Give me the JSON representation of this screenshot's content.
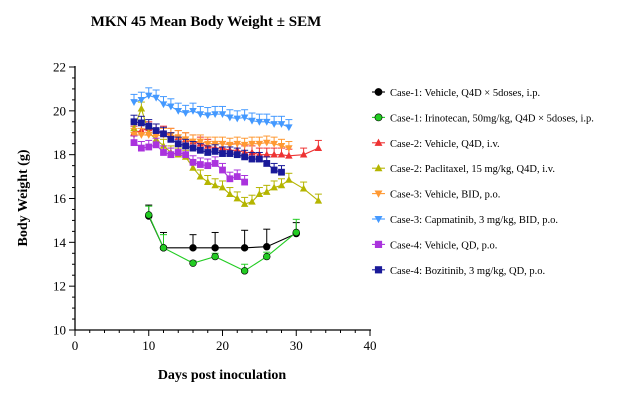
{
  "chart_data": {
    "type": "scatter",
    "title": "MKN 45 Mean Body Weight ± SEM",
    "xlabel": "Days post inoculation",
    "ylabel": "Body Weight (g)",
    "xlim": [
      0,
      40
    ],
    "ylim": [
      10,
      22
    ],
    "xticks": [
      0,
      10,
      20,
      30,
      40
    ],
    "yticks": [
      10,
      12,
      14,
      16,
      18,
      20,
      22
    ],
    "legend_position": "right",
    "series": [
      {
        "name": "Case-1: Vehicle, Q4D × 5doses, i.p.",
        "color": "#000000",
        "marker": "circle",
        "line": true,
        "x": [
          10,
          12,
          16,
          19,
          23,
          26,
          30
        ],
        "y": [
          15.2,
          13.75,
          13.75,
          13.75,
          13.75,
          13.8,
          14.4
        ],
        "err": [
          0.5,
          0.7,
          0.6,
          0.7,
          0.8,
          0.8,
          0.5
        ]
      },
      {
        "name": "Case-1: Irinotecan, 50mg/kg, Q4D × 5doses, i.p.",
        "color": "#22cc22",
        "marker": "circle",
        "line": true,
        "x": [
          10,
          12,
          16,
          19,
          23,
          26,
          30
        ],
        "y": [
          15.25,
          13.75,
          13.05,
          13.35,
          12.7,
          13.35,
          14.45
        ],
        "err": [
          0.4,
          0.6,
          0.1,
          0.15,
          0.3,
          0.2,
          0.6
        ]
      },
      {
        "name": "Case-2: Vehicle, Q4D, i.v.",
        "color": "#ee3333",
        "marker": "triangle-up",
        "line": true,
        "x": [
          8,
          9,
          10,
          11,
          12,
          13,
          14,
          15,
          16,
          17,
          18,
          19,
          20,
          21,
          22,
          23,
          24,
          25,
          26,
          27,
          28,
          29,
          31,
          33
        ],
        "y": [
          19.0,
          19.1,
          19.2,
          19.1,
          19.0,
          18.9,
          18.8,
          18.7,
          18.6,
          18.5,
          18.4,
          18.3,
          18.3,
          18.2,
          18.2,
          18.1,
          18.1,
          18.0,
          18.0,
          18.0,
          18.0,
          17.95,
          18.0,
          18.3
        ],
        "err": [
          0.3,
          0.3,
          0.3,
          0.3,
          0.3,
          0.3,
          0.3,
          0.3,
          0.3,
          0.3,
          0.3,
          0.3,
          0.3,
          0.3,
          0.3,
          0.3,
          0.3,
          0.3,
          0.3,
          0.3,
          0.3,
          0.3,
          0.3,
          0.35
        ]
      },
      {
        "name": "Case-2: Paclitaxel, 15 mg/kg, Q4D, i.v.",
        "color": "#b5b500",
        "marker": "triangle-up",
        "line": true,
        "x": [
          8,
          9,
          10,
          11,
          12,
          13,
          14,
          15,
          16,
          17,
          18,
          19,
          20,
          21,
          22,
          23,
          24,
          25,
          26,
          27,
          28,
          29,
          31,
          33
        ],
        "y": [
          19.2,
          20.1,
          19.0,
          18.7,
          18.4,
          18.1,
          18.0,
          17.9,
          17.4,
          17.0,
          16.75,
          16.6,
          16.5,
          16.2,
          16.0,
          15.75,
          15.85,
          16.2,
          16.3,
          16.5,
          16.6,
          16.85,
          16.45,
          15.9
        ],
        "err": [
          0.3,
          0.3,
          0.3,
          0.3,
          0.3,
          0.3,
          0.3,
          0.3,
          0.3,
          0.3,
          0.3,
          0.3,
          0.3,
          0.3,
          0.3,
          0.3,
          0.3,
          0.3,
          0.3,
          0.3,
          0.3,
          0.3,
          0.3,
          0.3
        ]
      },
      {
        "name": "Case-3: Vehicle, BID, p.o.",
        "color": "#ff9933",
        "marker": "triangle-down",
        "line": true,
        "x": [
          8,
          9,
          10,
          11,
          12,
          13,
          14,
          15,
          16,
          17,
          18,
          19,
          20,
          21,
          22,
          23,
          24,
          25,
          26,
          27,
          28,
          29
        ],
        "y": [
          18.9,
          18.9,
          18.9,
          18.85,
          18.9,
          18.9,
          18.8,
          18.7,
          18.6,
          18.6,
          18.5,
          18.5,
          18.5,
          18.45,
          18.5,
          18.45,
          18.5,
          18.5,
          18.55,
          18.5,
          18.4,
          18.3
        ],
        "err": [
          0.3,
          0.3,
          0.3,
          0.3,
          0.3,
          0.3,
          0.3,
          0.3,
          0.3,
          0.3,
          0.3,
          0.3,
          0.3,
          0.3,
          0.3,
          0.3,
          0.3,
          0.3,
          0.3,
          0.3,
          0.3,
          0.3
        ]
      },
      {
        "name": "Case-3: Capmatinib, 3 mg/kg, BID, p.o.",
        "color": "#4499ff",
        "marker": "triangle-down",
        "line": true,
        "x": [
          8,
          9,
          10,
          11,
          12,
          13,
          14,
          15,
          16,
          17,
          18,
          19,
          20,
          21,
          22,
          23,
          24,
          25,
          26,
          27,
          28,
          29
        ],
        "y": [
          20.4,
          20.5,
          20.7,
          20.6,
          20.3,
          20.2,
          20.0,
          19.9,
          20.0,
          19.85,
          19.8,
          19.85,
          19.85,
          19.7,
          19.65,
          19.7,
          19.55,
          19.5,
          19.5,
          19.4,
          19.4,
          19.25
        ],
        "err": [
          0.35,
          0.35,
          0.35,
          0.35,
          0.35,
          0.35,
          0.35,
          0.35,
          0.35,
          0.35,
          0.35,
          0.35,
          0.35,
          0.35,
          0.35,
          0.35,
          0.35,
          0.35,
          0.35,
          0.35,
          0.35,
          0.35
        ]
      },
      {
        "name": "Case-4: Vehicle, QD, p.o.",
        "color": "#aa33dd",
        "marker": "square",
        "line": true,
        "x": [
          8,
          9,
          10,
          11,
          12,
          13,
          14,
          15,
          16,
          17,
          18,
          19,
          20,
          21,
          22,
          23
        ],
        "y": [
          18.55,
          18.3,
          18.35,
          18.45,
          18.1,
          18.0,
          18.1,
          18.0,
          17.65,
          17.55,
          17.5,
          17.6,
          17.3,
          16.9,
          17.0,
          16.75
        ],
        "err": [
          0.3,
          0.3,
          0.3,
          0.3,
          0.3,
          0.3,
          0.3,
          0.3,
          0.3,
          0.3,
          0.3,
          0.3,
          0.3,
          0.3,
          0.3,
          0.3
        ]
      },
      {
        "name": "Case-4: Bozitinib, 3 mg/kg, QD, p.o.",
        "color": "#1a1a99",
        "marker": "square",
        "line": true,
        "x": [
          8,
          9,
          10,
          11,
          12,
          13,
          14,
          15,
          16,
          17,
          18,
          19,
          20,
          21,
          22,
          23,
          24,
          25,
          26,
          27,
          28
        ],
        "y": [
          19.5,
          19.45,
          19.3,
          19.1,
          18.95,
          18.7,
          18.5,
          18.4,
          18.3,
          18.2,
          18.1,
          18.15,
          18.05,
          18.05,
          18.0,
          17.9,
          17.8,
          17.8,
          17.6,
          17.3,
          17.2
        ],
        "err": [
          0.3,
          0.3,
          0.3,
          0.3,
          0.3,
          0.3,
          0.3,
          0.3,
          0.3,
          0.3,
          0.3,
          0.3,
          0.3,
          0.3,
          0.3,
          0.3,
          0.3,
          0.3,
          0.3,
          0.3,
          0.3
        ]
      }
    ]
  }
}
